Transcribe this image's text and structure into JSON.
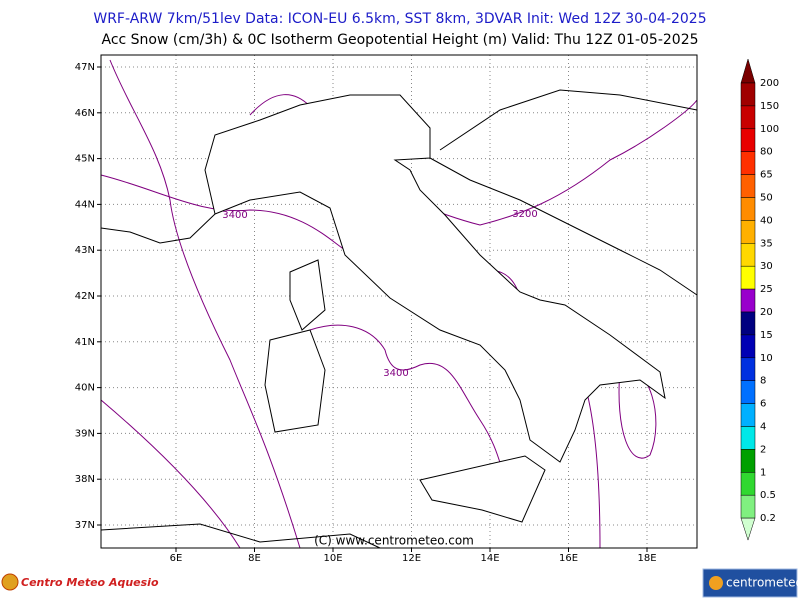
{
  "header": {
    "line1": "WRF-ARW 7km/51lev   Data: ICON-EU 6.5km, SST 8km, 3DVAR   Init: Wed 12Z 30-04-2025",
    "line2": "Acc Snow (cm/3h) & 0C Isotherm Geopotential Height (m)  Valid: Thu 12Z 01-05-2025"
  },
  "map": {
    "lat_labels": [
      "47N",
      "46N",
      "45N",
      "44N",
      "43N",
      "42N",
      "41N",
      "40N",
      "39N",
      "38N",
      "37N"
    ],
    "lon_labels": [
      "6E",
      "8E",
      "10E",
      "12E",
      "14E",
      "16E",
      "18E"
    ],
    "contour_labels": [
      "3400",
      "3200",
      "3400"
    ],
    "credit": "(C) www.centrometeo.com"
  },
  "colorbar": {
    "labels": [
      "200",
      "150",
      "100",
      "80",
      "65",
      "50",
      "40",
      "35",
      "30",
      "25",
      "20",
      "15",
      "10",
      "8",
      "6",
      "4",
      "2",
      "1",
      "0.5",
      "0.2"
    ],
    "colors": [
      "#7a0000",
      "#a00000",
      "#c80000",
      "#e80000",
      "#ff3000",
      "#ff6000",
      "#ff8c00",
      "#ffb000",
      "#ffd800",
      "#ffff00",
      "#9900cc",
      "#000080",
      "#0000b4",
      "#0030e0",
      "#0070ff",
      "#00b0ff",
      "#00e8e8",
      "#00a000",
      "#30d830",
      "#80f080",
      "#d0ffd0"
    ]
  },
  "footer": {
    "left_logo": "Centro Meteo Aquesio",
    "right_logo": "centrometeo"
  }
}
